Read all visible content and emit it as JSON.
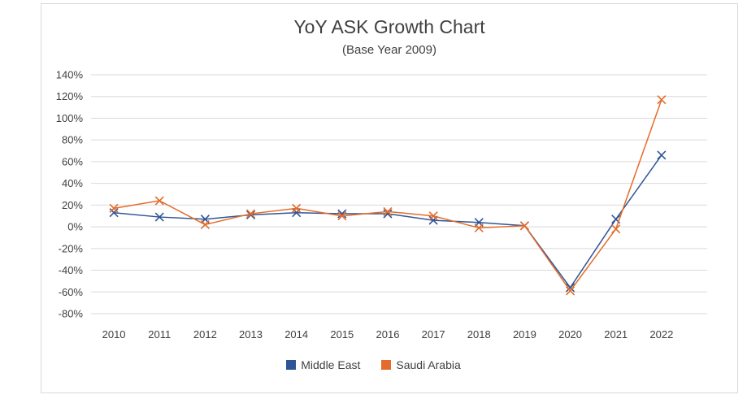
{
  "chart_data": {
    "type": "line",
    "title": "YoY ASK Growth Chart",
    "subtitle": "(Base Year 2009)",
    "xlabel": "",
    "ylabel": "",
    "categories": [
      "2010",
      "2011",
      "2012",
      "2013",
      "2014",
      "2015",
      "2016",
      "2017",
      "2018",
      "2019",
      "2020",
      "2021",
      "2022"
    ],
    "ylim": [
      -0.8,
      1.4
    ],
    "yticks": [
      1.4,
      1.2,
      1.0,
      0.8,
      0.6,
      0.4,
      0.2,
      0.0,
      -0.2,
      -0.4,
      -0.6,
      -0.8
    ],
    "ytick_labels": [
      "140%",
      "120%",
      "100%",
      "80%",
      "60%",
      "40%",
      "20%",
      "0%",
      "-20%",
      "-40%",
      "-60%",
      "-80%"
    ],
    "grid": true,
    "legend_position": "bottom",
    "series": [
      {
        "name": "Middle East",
        "color": "#2f5597",
        "values": [
          0.13,
          0.09,
          0.07,
          0.11,
          0.13,
          0.12,
          0.12,
          0.06,
          0.04,
          0.01,
          -0.56,
          0.07,
          0.66
        ]
      },
      {
        "name": "Saudi Arabia",
        "color": "#e46c2a",
        "values": [
          0.17,
          0.24,
          0.02,
          0.12,
          0.17,
          0.1,
          0.14,
          0.1,
          -0.01,
          0.01,
          -0.59,
          -0.02,
          1.17
        ]
      }
    ]
  }
}
